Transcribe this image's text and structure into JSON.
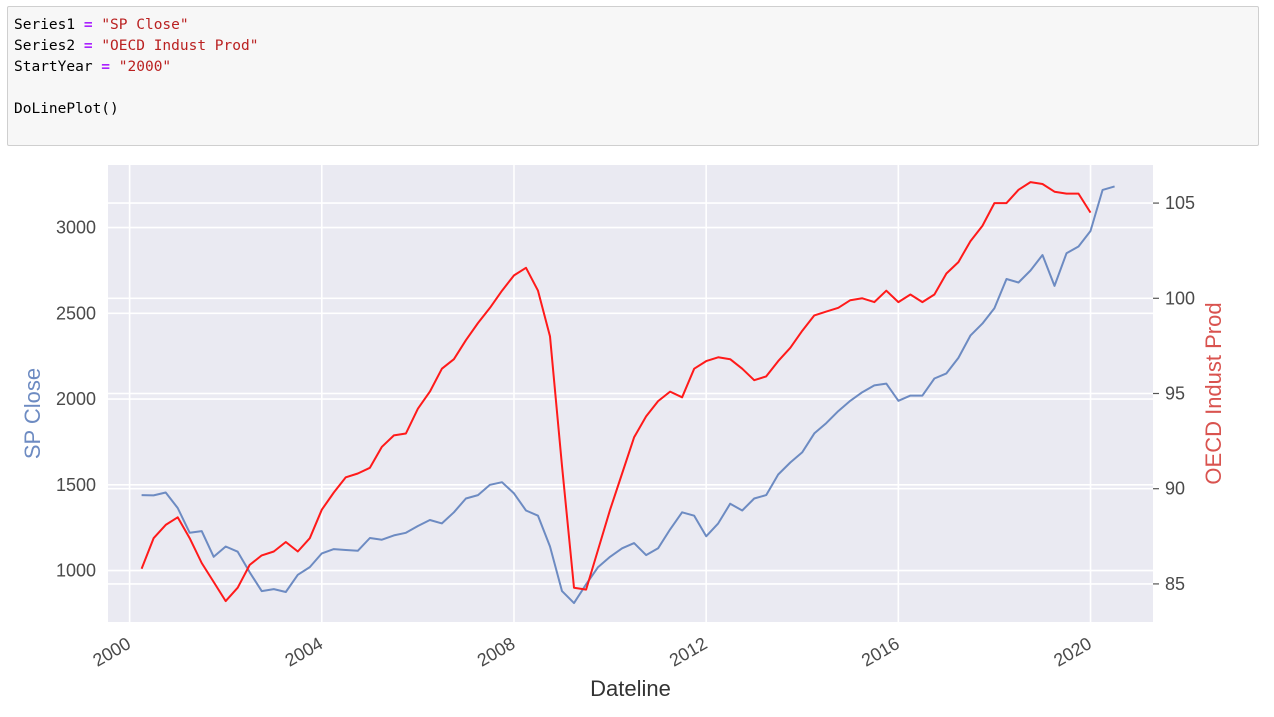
{
  "code": {
    "lines": [
      {
        "name": "Series1",
        "op": " = ",
        "value": "\"SP Close\""
      },
      {
        "name": "Series2",
        "op": " = ",
        "value": "\"OECD Indust Prod\""
      },
      {
        "name": "StartYear",
        "op": " = ",
        "value": "\"2000\""
      },
      {
        "name": "",
        "op": "",
        "value": ""
      },
      {
        "name": "DoLinePlot()",
        "op": "",
        "value": ""
      }
    ]
  },
  "colors": {
    "plot_bg": "#eaeaf2",
    "grid": "#ffffff",
    "series_left": "#6d8bc2",
    "series_right": "#ff1a1a",
    "left_label": "#6d8bc2",
    "right_label": "#d9534f"
  },
  "chart_data": {
    "type": "line",
    "xlabel": "Dateline",
    "ylabel_left": "SP Close",
    "ylabel_right": "OECD Indust Prod",
    "xlim": [
      1999.55,
      2021.3
    ],
    "ylim_left": [
      700,
      3365
    ],
    "ylim_right": [
      83.0,
      107.0
    ],
    "x_ticks": [
      "2000",
      "2004",
      "2008",
      "2012",
      "2016",
      "2020"
    ],
    "y_ticks_left": [
      "1000",
      "1500",
      "2000",
      "2500",
      "3000"
    ],
    "y_ticks_right": [
      "85",
      "90",
      "95",
      "100",
      "105"
    ],
    "grid": true,
    "series": [
      {
        "name": "SP Close",
        "axis": "left",
        "points": [
          [
            2000.25,
            1440
          ],
          [
            2000.5,
            1438
          ],
          [
            2000.75,
            1455
          ],
          [
            2001.0,
            1365
          ],
          [
            2001.25,
            1220
          ],
          [
            2001.5,
            1230
          ],
          [
            2001.75,
            1080
          ],
          [
            2002.0,
            1140
          ],
          [
            2002.25,
            1110
          ],
          [
            2002.5,
            990
          ],
          [
            2002.75,
            880
          ],
          [
            2003.0,
            892
          ],
          [
            2003.25,
            875
          ],
          [
            2003.5,
            975
          ],
          [
            2003.75,
            1020
          ],
          [
            2004.0,
            1100
          ],
          [
            2004.25,
            1125
          ],
          [
            2004.5,
            1120
          ],
          [
            2004.75,
            1115
          ],
          [
            2005.0,
            1190
          ],
          [
            2005.25,
            1180
          ],
          [
            2005.5,
            1205
          ],
          [
            2005.75,
            1220
          ],
          [
            2006.0,
            1260
          ],
          [
            2006.25,
            1295
          ],
          [
            2006.5,
            1275
          ],
          [
            2006.75,
            1340
          ],
          [
            2007.0,
            1420
          ],
          [
            2007.25,
            1440
          ],
          [
            2007.5,
            1500
          ],
          [
            2007.75,
            1515
          ],
          [
            2008.0,
            1450
          ],
          [
            2008.25,
            1350
          ],
          [
            2008.5,
            1320
          ],
          [
            2008.75,
            1140
          ],
          [
            2009.0,
            880
          ],
          [
            2009.25,
            810
          ],
          [
            2009.5,
            920
          ],
          [
            2009.75,
            1020
          ],
          [
            2010.0,
            1080
          ],
          [
            2010.25,
            1130
          ],
          [
            2010.5,
            1160
          ],
          [
            2010.75,
            1090
          ],
          [
            2011.0,
            1130
          ],
          [
            2011.25,
            1240
          ],
          [
            2011.5,
            1340
          ],
          [
            2011.75,
            1320
          ],
          [
            2012.0,
            1200
          ],
          [
            2012.25,
            1275
          ],
          [
            2012.5,
            1390
          ],
          [
            2012.75,
            1350
          ],
          [
            2013.0,
            1420
          ],
          [
            2013.25,
            1440
          ],
          [
            2013.5,
            1560
          ],
          [
            2013.75,
            1630
          ],
          [
            2014.0,
            1690
          ],
          [
            2014.25,
            1800
          ],
          [
            2014.5,
            1860
          ],
          [
            2014.75,
            1930
          ],
          [
            2015.0,
            1990
          ],
          [
            2015.25,
            2040
          ],
          [
            2015.5,
            2080
          ],
          [
            2015.75,
            2090
          ],
          [
            2016.0,
            1990
          ],
          [
            2016.25,
            2020
          ],
          [
            2016.5,
            2020
          ],
          [
            2016.75,
            2120
          ],
          [
            2017.0,
            2150
          ],
          [
            2017.25,
            2240
          ],
          [
            2017.5,
            2370
          ],
          [
            2017.75,
            2440
          ],
          [
            2018.0,
            2530
          ],
          [
            2018.25,
            2700
          ],
          [
            2018.5,
            2680
          ],
          [
            2018.75,
            2750
          ],
          [
            2019.0,
            2840
          ],
          [
            2019.25,
            2660
          ],
          [
            2019.5,
            2850
          ],
          [
            2019.75,
            2890
          ],
          [
            2020.0,
            2980
          ],
          [
            2020.25,
            3220
          ],
          [
            2020.5,
            3240
          ]
        ]
      },
      {
        "name": "OECD Indust Prod",
        "axis": "right",
        "points": [
          [
            2000.25,
            85.8
          ],
          [
            2000.5,
            87.4
          ],
          [
            2000.75,
            88.1
          ],
          [
            2001.0,
            88.5
          ],
          [
            2001.25,
            87.4
          ],
          [
            2001.5,
            86.1
          ],
          [
            2001.75,
            85.1
          ],
          [
            2002.0,
            84.1
          ],
          [
            2002.25,
            84.8
          ],
          [
            2002.5,
            86.0
          ],
          [
            2002.75,
            86.5
          ],
          [
            2003.0,
            86.7
          ],
          [
            2003.25,
            87.2
          ],
          [
            2003.5,
            86.7
          ],
          [
            2003.75,
            87.4
          ],
          [
            2004.0,
            88.9
          ],
          [
            2004.25,
            89.8
          ],
          [
            2004.5,
            90.6
          ],
          [
            2004.75,
            90.8
          ],
          [
            2005.0,
            91.1
          ],
          [
            2005.25,
            92.2
          ],
          [
            2005.5,
            92.8
          ],
          [
            2005.75,
            92.9
          ],
          [
            2006.0,
            94.2
          ],
          [
            2006.25,
            95.1
          ],
          [
            2006.5,
            96.3
          ],
          [
            2006.75,
            96.8
          ],
          [
            2007.0,
            97.8
          ],
          [
            2007.25,
            98.7
          ],
          [
            2007.5,
            99.5
          ],
          [
            2007.75,
            100.4
          ],
          [
            2008.0,
            101.2
          ],
          [
            2008.25,
            101.6
          ],
          [
            2008.5,
            100.4
          ],
          [
            2008.75,
            98.0
          ],
          [
            2009.0,
            91.2
          ],
          [
            2009.25,
            84.8
          ],
          [
            2009.5,
            84.7
          ],
          [
            2009.75,
            86.8
          ],
          [
            2010.0,
            88.9
          ],
          [
            2010.25,
            90.8
          ],
          [
            2010.5,
            92.7
          ],
          [
            2010.75,
            93.8
          ],
          [
            2011.0,
            94.6
          ],
          [
            2011.25,
            95.1
          ],
          [
            2011.5,
            94.8
          ],
          [
            2011.75,
            96.3
          ],
          [
            2012.0,
            96.7
          ],
          [
            2012.25,
            96.9
          ],
          [
            2012.5,
            96.8
          ],
          [
            2012.75,
            96.3
          ],
          [
            2013.0,
            95.7
          ],
          [
            2013.25,
            95.9
          ],
          [
            2013.5,
            96.7
          ],
          [
            2013.75,
            97.4
          ],
          [
            2014.0,
            98.3
          ],
          [
            2014.25,
            99.1
          ],
          [
            2014.5,
            99.3
          ],
          [
            2014.75,
            99.5
          ],
          [
            2015.0,
            99.9
          ],
          [
            2015.25,
            100.0
          ],
          [
            2015.5,
            99.8
          ],
          [
            2015.75,
            100.4
          ],
          [
            2016.0,
            99.8
          ],
          [
            2016.25,
            100.2
          ],
          [
            2016.5,
            99.8
          ],
          [
            2016.75,
            100.2
          ],
          [
            2017.0,
            101.3
          ],
          [
            2017.25,
            101.9
          ],
          [
            2017.5,
            103.0
          ],
          [
            2017.75,
            103.8
          ],
          [
            2018.0,
            105.0
          ],
          [
            2018.25,
            105.0
          ],
          [
            2018.5,
            105.7
          ],
          [
            2018.75,
            106.1
          ],
          [
            2019.0,
            106.0
          ],
          [
            2019.25,
            105.6
          ],
          [
            2019.5,
            105.5
          ],
          [
            2019.75,
            105.5
          ],
          [
            2020.0,
            104.5
          ]
        ]
      }
    ]
  }
}
